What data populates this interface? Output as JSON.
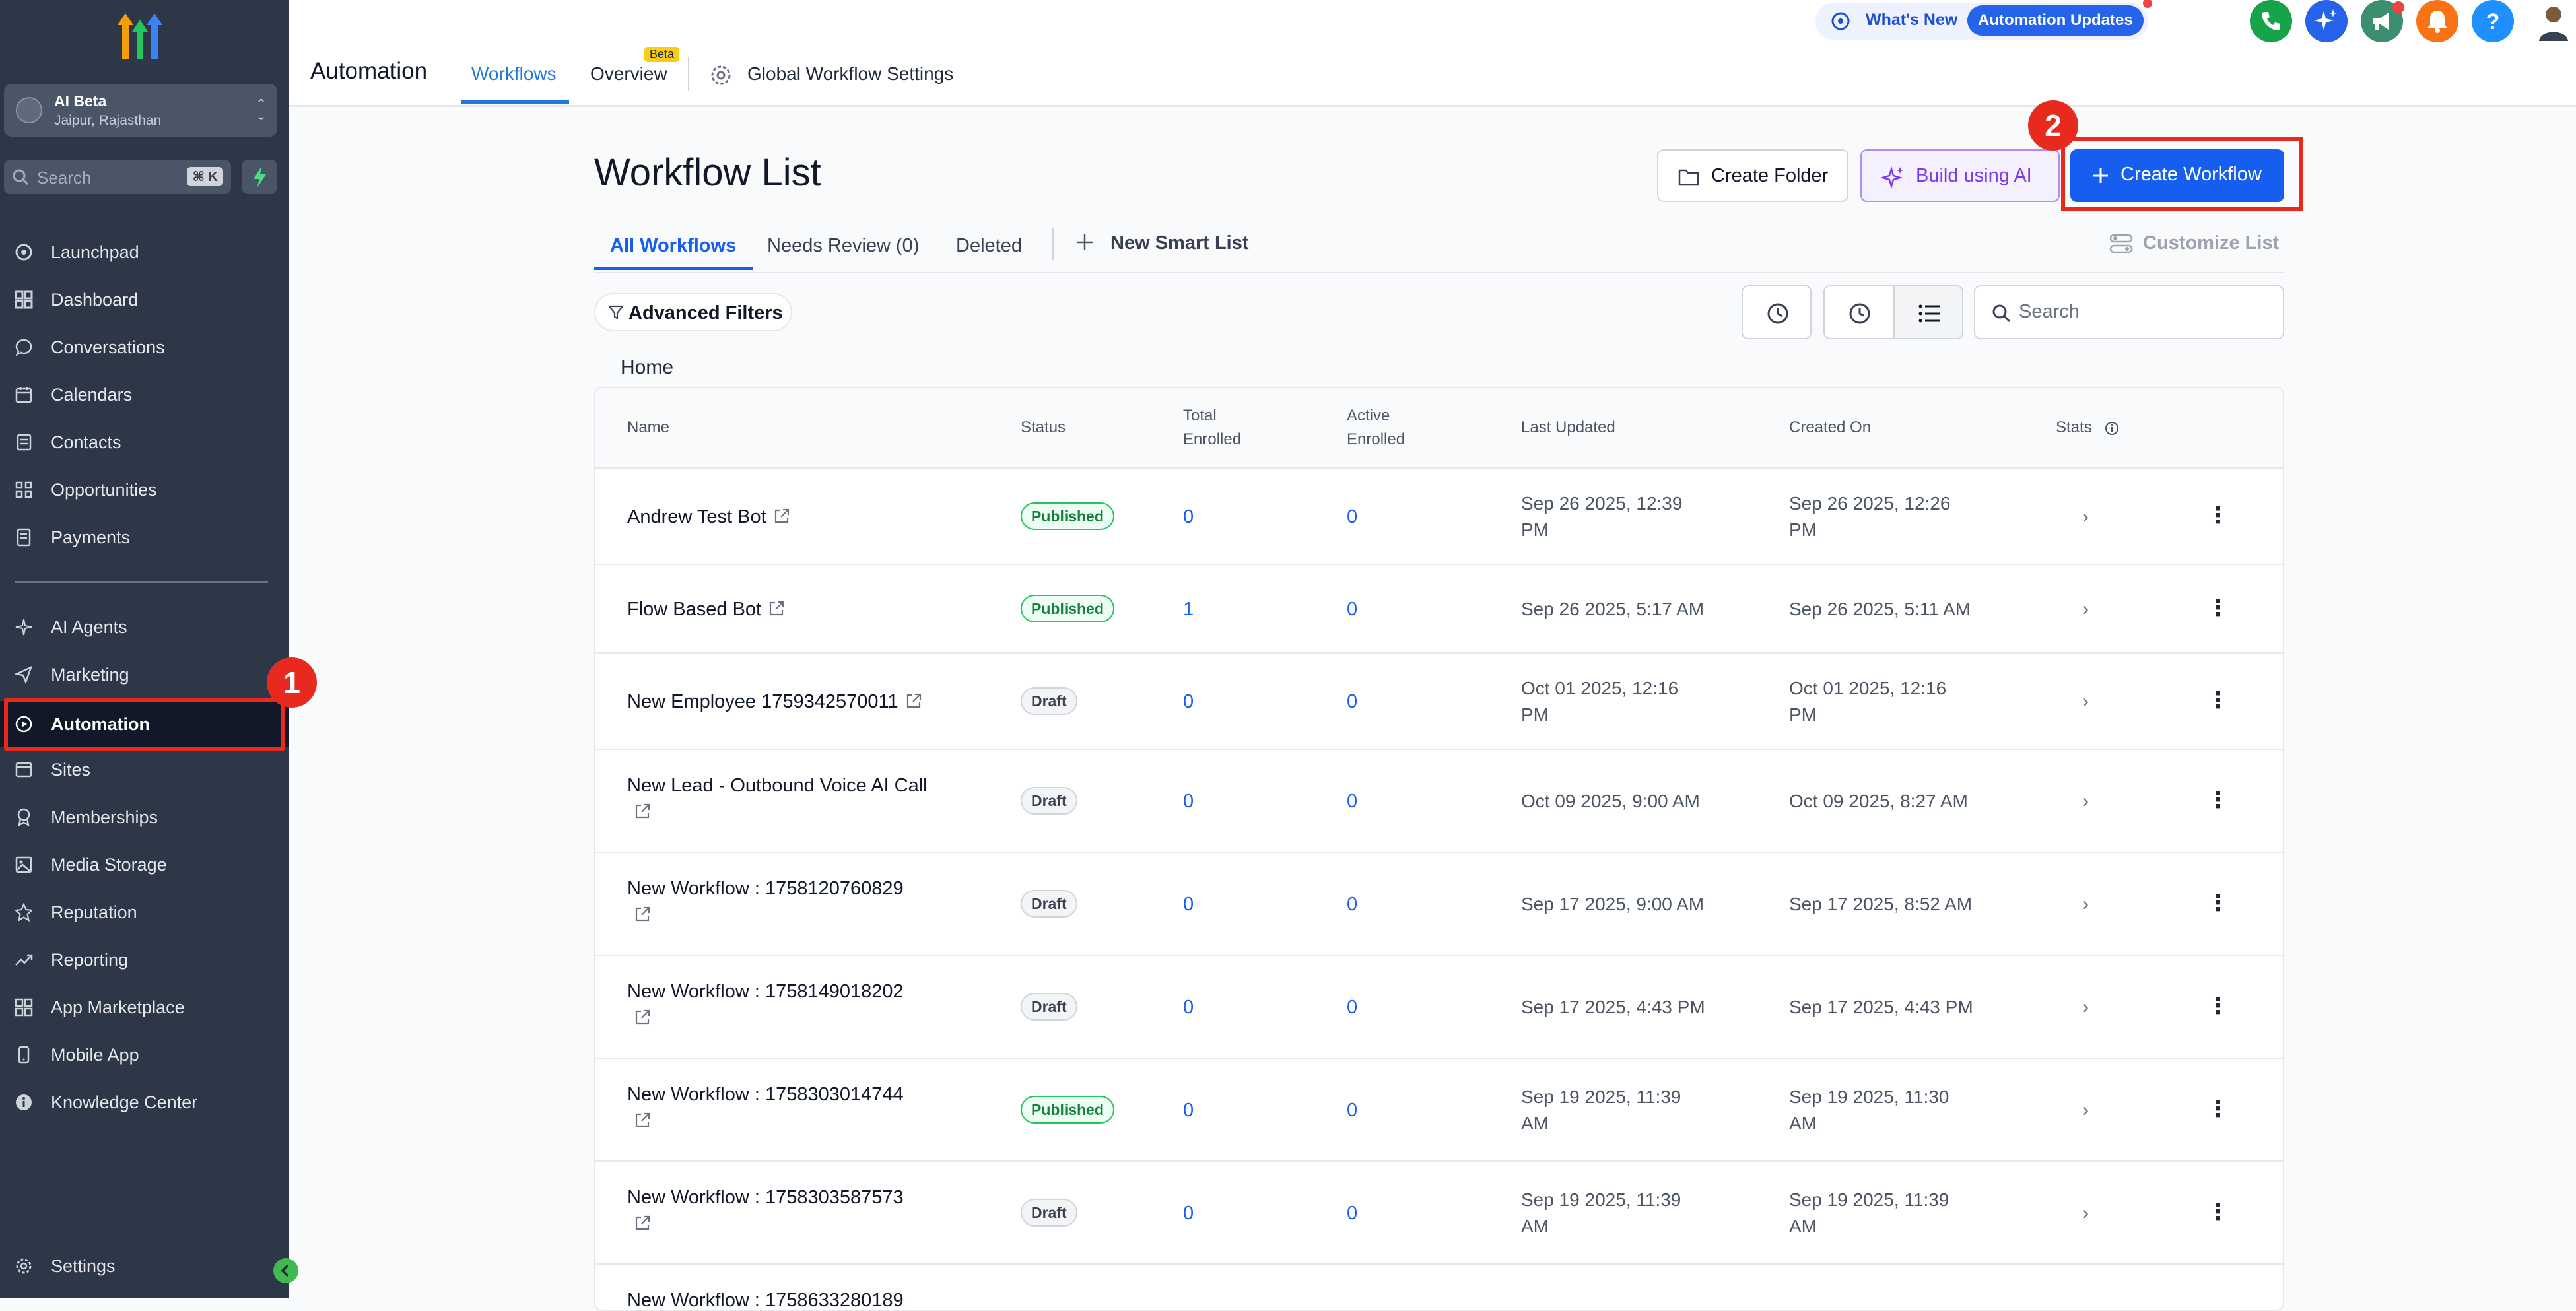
{
  "sidebar": {
    "account": {
      "name": "AI Beta",
      "location": "Jaipur, Rajasthan"
    },
    "search": {
      "placeholder": "Search",
      "shortcut": "⌘ K"
    },
    "items": [
      {
        "label": "Launchpad",
        "icon": "launchpad-icon"
      },
      {
        "label": "Dashboard",
        "icon": "dashboard-icon"
      },
      {
        "label": "Conversations",
        "icon": "chat-icon"
      },
      {
        "label": "Calendars",
        "icon": "calendar-icon"
      },
      {
        "label": "Contacts",
        "icon": "contacts-icon"
      },
      {
        "label": "Opportunities",
        "icon": "opportunities-icon"
      },
      {
        "label": "Payments",
        "icon": "payments-icon"
      }
    ],
    "items2": [
      {
        "label": "AI Agents",
        "icon": "sparkle-icon"
      },
      {
        "label": "Marketing",
        "icon": "send-icon"
      },
      {
        "label": "Automation",
        "icon": "automation-icon",
        "active": true
      },
      {
        "label": "Sites",
        "icon": "sites-icon"
      },
      {
        "label": "Memberships",
        "icon": "award-icon"
      },
      {
        "label": "Media Storage",
        "icon": "image-icon"
      },
      {
        "label": "Reputation",
        "icon": "star-icon"
      },
      {
        "label": "Reporting",
        "icon": "trend-icon"
      },
      {
        "label": "App Marketplace",
        "icon": "grid-icon"
      },
      {
        "label": "Mobile App",
        "icon": "phone-icon"
      },
      {
        "label": "Knowledge Center",
        "icon": "info-icon"
      }
    ],
    "settings": "Settings"
  },
  "annotations": {
    "step1": "1",
    "step2": "2"
  },
  "topbar": {
    "title": "Automation",
    "tabs": {
      "workflows": "Workflows",
      "overview": "Overview",
      "beta": "Beta",
      "global": "Global Workflow Settings"
    },
    "whats_new": "What's New",
    "automation_updates": "Automation Updates"
  },
  "main": {
    "title": "Workflow List",
    "buttons": {
      "create_folder": "Create Folder",
      "build_ai": "Build using AI",
      "create_workflow": "Create Workflow"
    },
    "tabs": {
      "all": "All Workflows",
      "review": "Needs Review (0)",
      "deleted": "Deleted",
      "smart": "New Smart List"
    },
    "customize": "Customize List",
    "advanced_filters": "Advanced Filters",
    "search_placeholder": "Search",
    "breadcrumb": "Home"
  },
  "table": {
    "columns": {
      "name": "Name",
      "status": "Status",
      "total1": "Total",
      "total2": "Enrolled",
      "active1": "Active",
      "active2": "Enrolled",
      "updated": "Last Updated",
      "created": "Created On",
      "stats": "Stats"
    },
    "rows": [
      {
        "name": "Andrew Test Bot",
        "status": "Published",
        "total": "0",
        "active": "0",
        "updated1": "Sep 26 2025, 12:39",
        "updated2": "PM",
        "created1": "Sep 26 2025, 12:26",
        "created2": "PM"
      },
      {
        "name": "Flow Based Bot",
        "status": "Published",
        "total": "1",
        "active": "0",
        "updated1": "Sep 26 2025, 5:17 AM",
        "updated2": "",
        "created1": "Sep 26 2025, 5:11 AM",
        "created2": ""
      },
      {
        "name": "New Employee 1759342570011",
        "status": "Draft",
        "total": "0",
        "active": "0",
        "updated1": "Oct 01 2025, 12:16",
        "updated2": "PM",
        "created1": "Oct 01 2025, 12:16",
        "created2": "PM"
      },
      {
        "name": "New Lead - Outbound Voice AI Call",
        "status": "Draft",
        "total": "0",
        "active": "0",
        "updated1": "Oct 09 2025, 9:00 AM",
        "updated2": "",
        "created1": "Oct 09 2025, 8:27 AM",
        "created2": ""
      },
      {
        "name": "New Workflow : 1758120760829",
        "status": "Draft",
        "total": "0",
        "active": "0",
        "updated1": "Sep 17 2025, 9:00 AM",
        "updated2": "",
        "created1": "Sep 17 2025, 8:52 AM",
        "created2": ""
      },
      {
        "name": "New Workflow : 1758149018202",
        "status": "Draft",
        "total": "0",
        "active": "0",
        "updated1": "Sep 17 2025, 4:43 PM",
        "updated2": "",
        "created1": "Sep 17 2025, 4:43 PM",
        "created2": ""
      },
      {
        "name": "New Workflow : 1758303014744",
        "status": "Published",
        "total": "0",
        "active": "0",
        "updated1": "Sep 19 2025, 11:39",
        "updated2": "AM",
        "created1": "Sep 19 2025, 11:30",
        "created2": "AM"
      },
      {
        "name": "New Workflow : 1758303587573",
        "status": "Draft",
        "total": "0",
        "active": "0",
        "updated1": "Sep 19 2025, 11:39",
        "updated2": "AM",
        "created1": "Sep 19 2025, 11:39",
        "created2": "AM"
      },
      {
        "name": "New Workflow : 1758633280189",
        "status": "",
        "total": "",
        "active": "",
        "updated1": "",
        "updated2": "",
        "created1": "",
        "created2": ""
      }
    ]
  },
  "colors": {
    "sidebar": "#2d3748",
    "accent": "#155eef",
    "highlight": "#e8291d"
  }
}
